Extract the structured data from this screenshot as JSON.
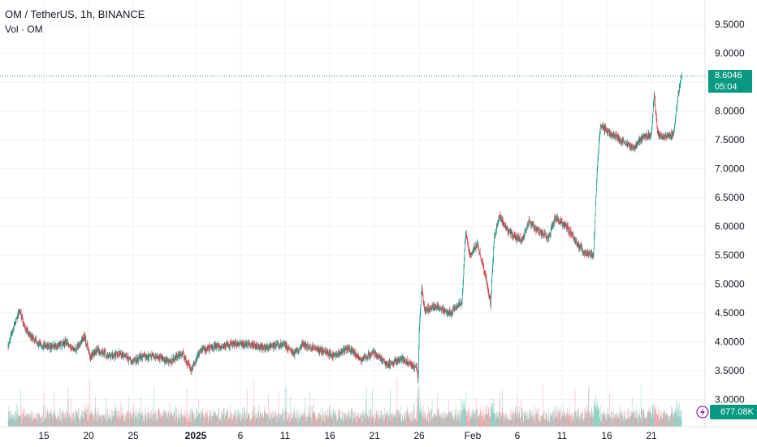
{
  "legend": {
    "symbol": "OM / TetherUS",
    "interval": "1h",
    "exchange": "BINANCE",
    "volume_label": "Vol · OM"
  },
  "price_axis": {
    "last_price": "8.6046",
    "countdown": "05:04"
  },
  "volume_axis": {
    "last_volume": "677.08K"
  },
  "colors": {
    "up": "#089981",
    "down": "#f23645",
    "grid": "#f0f3fa",
    "text": "#131722"
  },
  "chart_data": {
    "type": "candlestick",
    "title": "OM / TetherUS, 1h, BINANCE",
    "ylim": [
      2.6,
      9.9
    ],
    "y_ticks": [
      "9.5000",
      "9.0000",
      "8.5000",
      "8.0000",
      "7.5000",
      "7.0000",
      "6.5000",
      "6.0000",
      "5.5000",
      "5.0000",
      "4.5000",
      "4.0000",
      "3.5000",
      "3.0000"
    ],
    "y_tick_values": [
      9.5,
      9.0,
      8.5,
      8.0,
      7.5,
      7.0,
      6.5,
      6.0,
      5.5,
      5.0,
      4.5,
      4.0,
      3.5,
      3.0
    ],
    "x_ticks": [
      "15",
      "20",
      "25",
      "2025",
      "6",
      "11",
      "16",
      "21",
      "26",
      "Feb",
      "6",
      "11",
      "16",
      "21"
    ],
    "x_tick_days": [
      15,
      20,
      25,
      32,
      37,
      42,
      47,
      52,
      57,
      63,
      68,
      73,
      78,
      83
    ],
    "x_range_days": [
      11.0,
      86.5
    ],
    "price_path": [
      [
        11.0,
        3.95
      ],
      [
        11.8,
        4.35
      ],
      [
        12.3,
        4.55
      ],
      [
        12.8,
        4.25
      ],
      [
        13.5,
        4.1
      ],
      [
        14.5,
        3.95
      ],
      [
        16.0,
        3.9
      ],
      [
        17.5,
        4.0
      ],
      [
        18.5,
        3.85
      ],
      [
        19.5,
        4.1
      ],
      [
        20.2,
        3.75
      ],
      [
        21.0,
        3.85
      ],
      [
        22.5,
        3.75
      ],
      [
        23.5,
        3.8
      ],
      [
        25.0,
        3.65
      ],
      [
        26.0,
        3.75
      ],
      [
        27.5,
        3.75
      ],
      [
        29.0,
        3.65
      ],
      [
        30.5,
        3.8
      ],
      [
        31.5,
        3.5
      ],
      [
        32.5,
        3.85
      ],
      [
        34.0,
        3.9
      ],
      [
        36.0,
        3.95
      ],
      [
        38.0,
        3.95
      ],
      [
        40.0,
        3.9
      ],
      [
        42.0,
        3.95
      ],
      [
        43.0,
        3.8
      ],
      [
        44.0,
        3.95
      ],
      [
        46.0,
        3.85
      ],
      [
        47.5,
        3.75
      ],
      [
        49.0,
        3.9
      ],
      [
        50.5,
        3.7
      ],
      [
        52.0,
        3.8
      ],
      [
        53.5,
        3.6
      ],
      [
        55.0,
        3.7
      ],
      [
        56.7,
        3.55
      ],
      [
        56.9,
        3.35
      ],
      [
        57.0,
        4.2
      ],
      [
        57.3,
        4.95
      ],
      [
        57.6,
        4.55
      ],
      [
        59.0,
        4.6
      ],
      [
        60.5,
        4.5
      ],
      [
        61.8,
        4.7
      ],
      [
        62.2,
        5.9
      ],
      [
        62.7,
        5.5
      ],
      [
        63.5,
        5.7
      ],
      [
        64.5,
        5.1
      ],
      [
        65.0,
        4.65
      ],
      [
        65.4,
        5.8
      ],
      [
        66.0,
        6.2
      ],
      [
        67.0,
        5.9
      ],
      [
        68.5,
        5.75
      ],
      [
        69.3,
        6.1
      ],
      [
        70.0,
        5.95
      ],
      [
        71.5,
        5.8
      ],
      [
        72.2,
        6.15
      ],
      [
        73.5,
        6.0
      ],
      [
        74.5,
        5.75
      ],
      [
        75.5,
        5.55
      ],
      [
        76.5,
        5.5
      ],
      [
        77.0,
        7.2
      ],
      [
        77.3,
        7.75
      ],
      [
        78.0,
        7.65
      ],
      [
        79.0,
        7.55
      ],
      [
        80.0,
        7.45
      ],
      [
        81.0,
        7.35
      ],
      [
        82.0,
        7.55
      ],
      [
        83.0,
        7.6
      ],
      [
        83.3,
        8.3
      ],
      [
        83.7,
        7.6
      ],
      [
        84.5,
        7.55
      ],
      [
        85.5,
        7.6
      ],
      [
        86.0,
        8.3
      ],
      [
        86.4,
        8.6
      ]
    ],
    "volume_scale_max": 5.5
  }
}
